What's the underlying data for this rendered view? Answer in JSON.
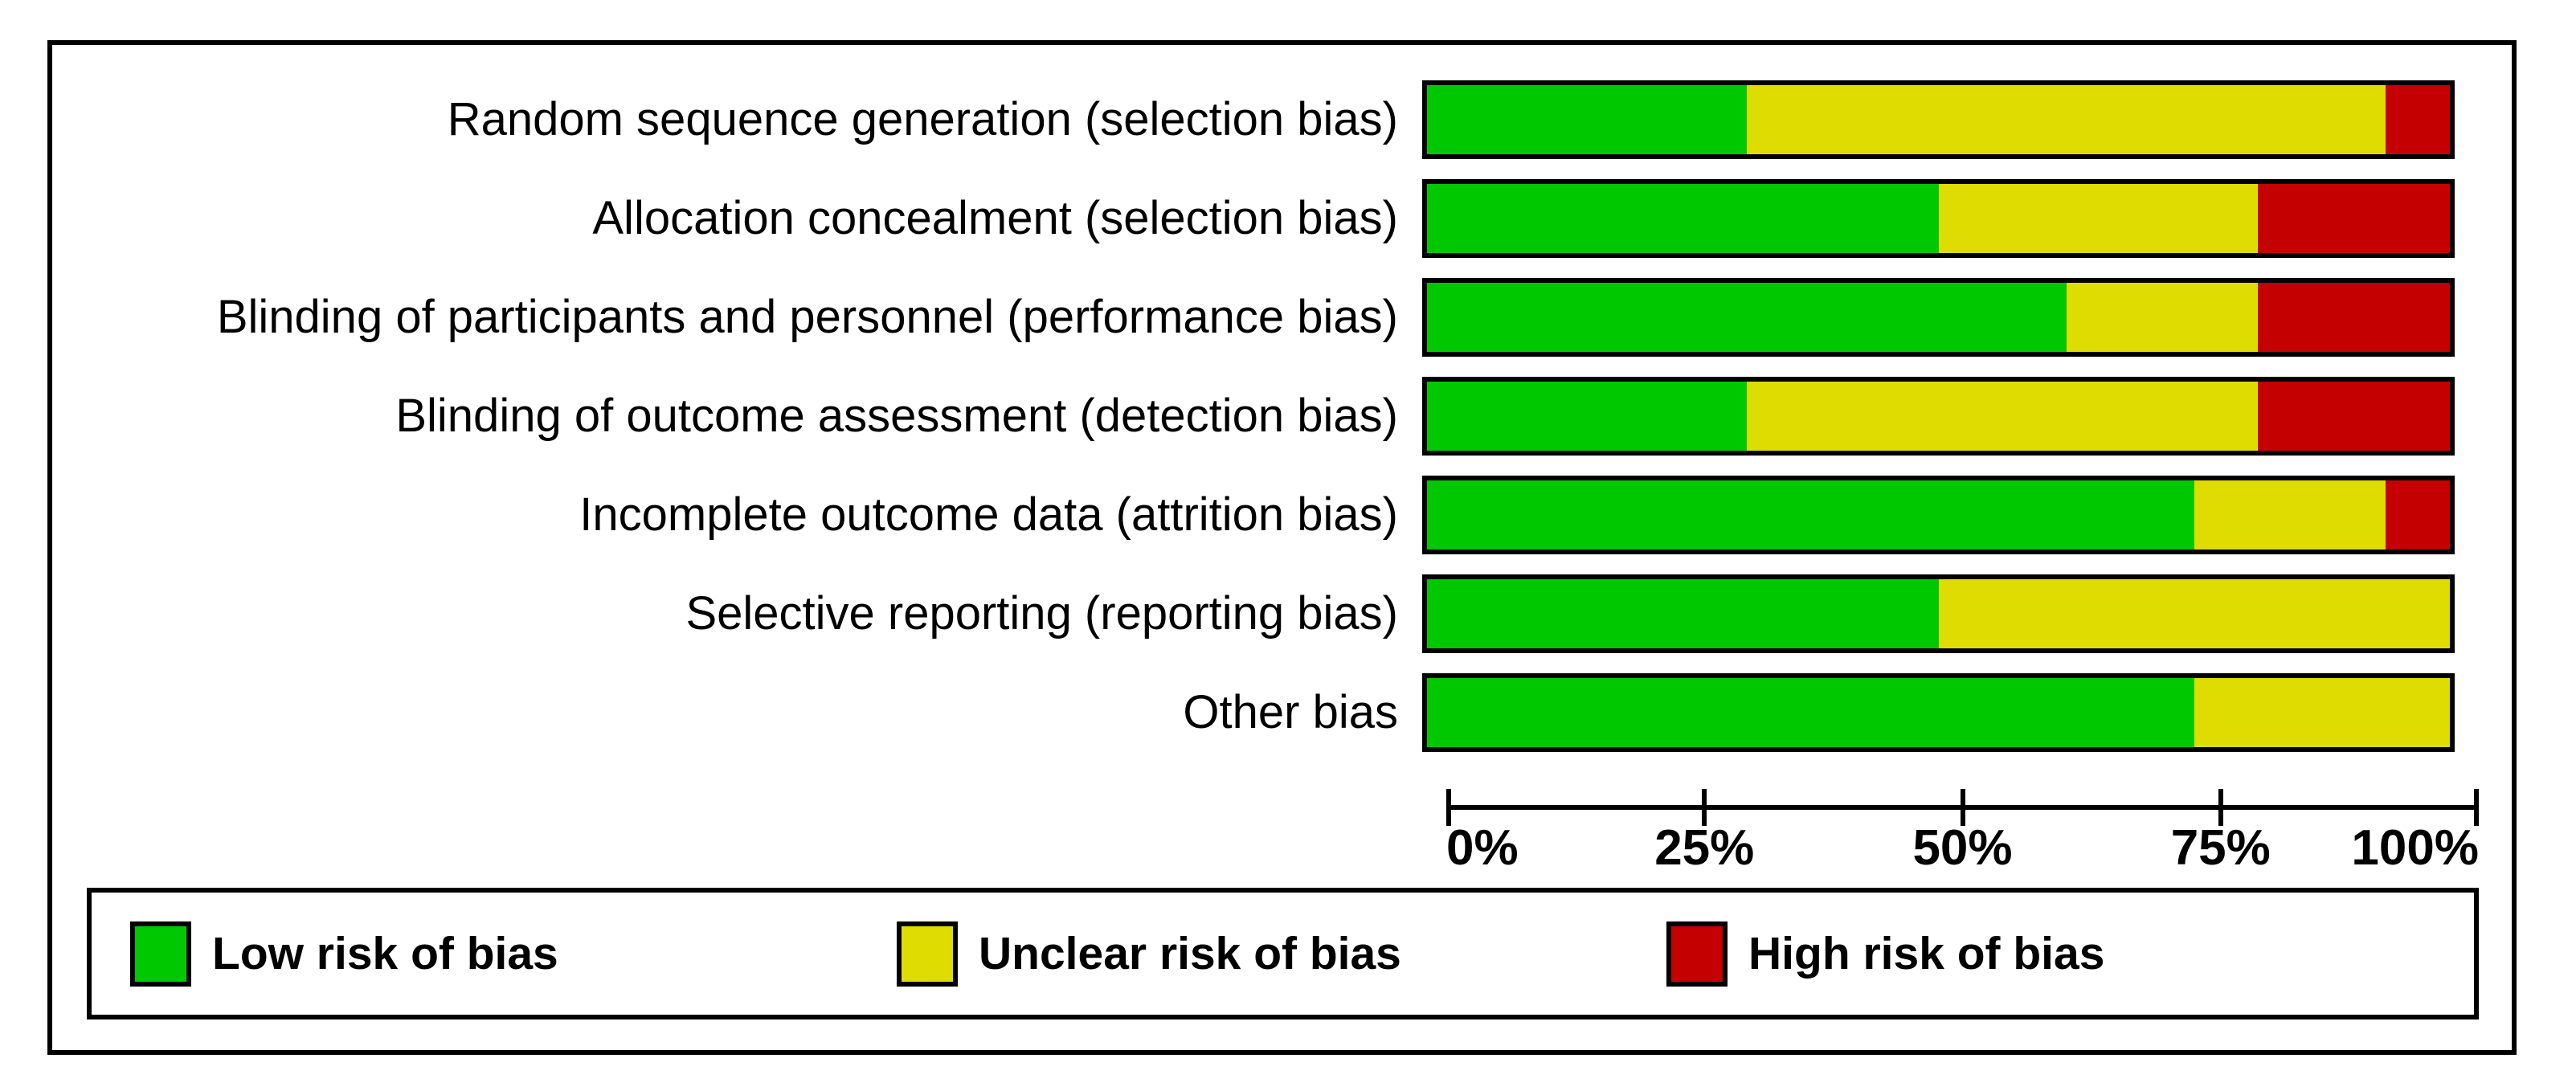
{
  "chart_data": {
    "type": "bar",
    "variant": "horizontal-stacked-percentage",
    "title": "",
    "categories": [
      "Random sequence generation (selection bias)",
      "Allocation concealment (selection bias)",
      "Blinding of participants and personnel (performance bias)",
      "Blinding of outcome assessment (detection bias)",
      "Incomplete outcome data (attrition bias)",
      "Selective reporting (reporting bias)",
      "Other bias"
    ],
    "series": [
      {
        "name": "Low risk of bias",
        "color": "#00c800",
        "values": [
          31.25,
          50,
          62.5,
          31.25,
          75,
          50,
          75
        ]
      },
      {
        "name": "Unclear risk of bias",
        "color": "#dedc00",
        "values": [
          62.5,
          31.25,
          18.75,
          50,
          18.75,
          50,
          25
        ]
      },
      {
        "name": "High risk of bias",
        "color": "#c40000",
        "values": [
          6.25,
          18.75,
          18.75,
          18.75,
          6.25,
          0,
          0
        ]
      }
    ],
    "x_ticks": [
      0,
      25,
      50,
      75,
      100
    ],
    "x_tick_labels": [
      "0%",
      "25%",
      "50%",
      "75%",
      "100%"
    ],
    "xlim": [
      0,
      100
    ],
    "grid": false,
    "legend_position": "bottom",
    "colors": {
      "low_risk": "#00c800",
      "unclear_risk": "#dedc00",
      "high_risk": "#c40000",
      "border": "#000000",
      "background": "#ffffff"
    }
  }
}
